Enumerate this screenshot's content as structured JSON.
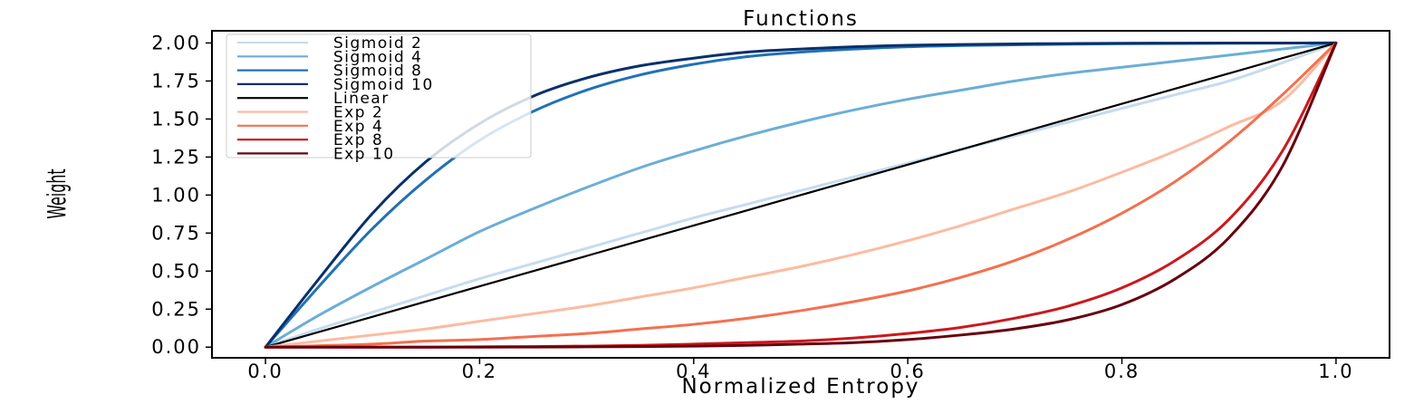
{
  "chart_data": {
    "type": "line",
    "title": "Functions",
    "xlabel": "Normalized Entropy",
    "ylabel": "Weight",
    "xlim": [
      -0.05,
      1.05
    ],
    "ylim": [
      -0.07,
      2.08
    ],
    "xticks": [
      0.0,
      0.2,
      0.4,
      0.6,
      0.8,
      1.0
    ],
    "xtick_labels": [
      "0.0",
      "0.2",
      "0.4",
      "0.6",
      "0.8",
      "1.0"
    ],
    "yticks": [
      0.0,
      0.25,
      0.5,
      0.75,
      1.0,
      1.25,
      1.5,
      1.75,
      2.0
    ],
    "ytick_labels": [
      "0.00",
      "0.25",
      "0.50",
      "0.75",
      "1.00",
      "1.25",
      "1.50",
      "1.75",
      "2.00"
    ],
    "grid": false,
    "legend": "top-left",
    "x": [
      0.0,
      0.05,
      0.1,
      0.15,
      0.2,
      0.25,
      0.3,
      0.35,
      0.4,
      0.45,
      0.5,
      0.55,
      0.6,
      0.65,
      0.7,
      0.75,
      0.8,
      0.85,
      0.9,
      0.95,
      1.0
    ],
    "series": [
      {
        "name": "Sigmoid 2",
        "color": "#c6dbef",
        "values": [
          0.0,
          0.12,
          0.23,
          0.34,
          0.45,
          0.55,
          0.65,
          0.75,
          0.85,
          0.94,
          1.03,
          1.12,
          1.21,
          1.3,
          1.39,
          1.48,
          1.57,
          1.66,
          1.75,
          1.87,
          2.0
        ]
      },
      {
        "name": "Sigmoid 4",
        "color": "#6baed6",
        "values": [
          0.0,
          0.21,
          0.4,
          0.58,
          0.76,
          0.91,
          1.05,
          1.18,
          1.29,
          1.39,
          1.48,
          1.56,
          1.63,
          1.69,
          1.75,
          1.8,
          1.84,
          1.88,
          1.92,
          1.96,
          2.0
        ]
      },
      {
        "name": "Sigmoid 8",
        "color": "#2171b5",
        "values": [
          0.0,
          0.4,
          0.78,
          1.1,
          1.36,
          1.55,
          1.69,
          1.79,
          1.86,
          1.91,
          1.94,
          1.96,
          1.975,
          1.983,
          1.988,
          1.992,
          1.995,
          1.997,
          1.998,
          1.999,
          2.0
        ]
      },
      {
        "name": "Sigmoid 10",
        "color": "#08306b",
        "values": [
          0.0,
          0.45,
          0.88,
          1.22,
          1.47,
          1.65,
          1.77,
          1.85,
          1.9,
          1.94,
          1.96,
          1.975,
          1.985,
          1.99,
          1.994,
          1.996,
          1.998,
          1.999,
          1.9995,
          1.9998,
          2.0
        ]
      },
      {
        "name": "Linear",
        "color": "#000000",
        "values": [
          0.0,
          0.1,
          0.2,
          0.3,
          0.4,
          0.5,
          0.6,
          0.7,
          0.8,
          0.9,
          1.0,
          1.1,
          1.2,
          1.3,
          1.4,
          1.5,
          1.6,
          1.7,
          1.8,
          1.9,
          2.0
        ]
      },
      {
        "name": "Exp 2",
        "color": "#fcbba1",
        "values": [
          0.0,
          0.04,
          0.08,
          0.12,
          0.17,
          0.22,
          0.27,
          0.33,
          0.39,
          0.46,
          0.53,
          0.61,
          0.7,
          0.8,
          0.91,
          1.02,
          1.15,
          1.29,
          1.45,
          1.62,
          2.0
        ]
      },
      {
        "name": "Exp 4",
        "color": "#f4704f",
        "values": [
          0.0,
          0.01,
          0.02,
          0.04,
          0.05,
          0.07,
          0.09,
          0.12,
          0.15,
          0.19,
          0.24,
          0.3,
          0.37,
          0.46,
          0.57,
          0.71,
          0.88,
          1.09,
          1.35,
          1.66,
          2.0
        ]
      },
      {
        "name": "Exp 8",
        "color": "#cb181d",
        "values": [
          0.0,
          0.0,
          0.0,
          0.0,
          0.002,
          0.004,
          0.007,
          0.012,
          0.02,
          0.03,
          0.04,
          0.06,
          0.09,
          0.13,
          0.19,
          0.27,
          0.39,
          0.57,
          0.84,
          1.29,
          2.0
        ]
      },
      {
        "name": "Exp 10",
        "color": "#67000d",
        "values": [
          0.0,
          0.0,
          0.0,
          0.0,
          0.0,
          0.001,
          0.002,
          0.004,
          0.007,
          0.012,
          0.02,
          0.03,
          0.05,
          0.08,
          0.12,
          0.18,
          0.28,
          0.45,
          0.72,
          1.19,
          2.0
        ]
      }
    ]
  }
}
